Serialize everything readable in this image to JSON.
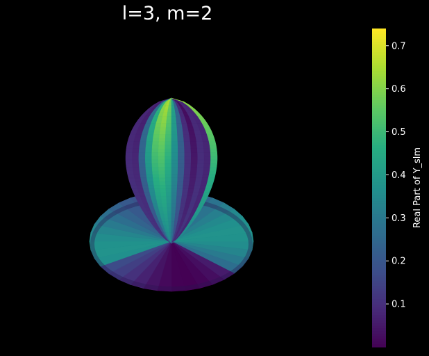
{
  "title": "l=3, m=2",
  "colors": {
    "background": "#000000",
    "text": "#ffffff",
    "colormap": "viridis"
  },
  "chart_data": {
    "type": "surface3d",
    "title": "l=3, m=2",
    "l": 3,
    "m": 2,
    "surface": "spherical harmonic |Y_lm| lobes colored by real part",
    "colorbar": {
      "label": "Real Part of Y_slm",
      "colormap": "viridis",
      "range": [
        0.0,
        0.74
      ],
      "ticks": [
        0.1,
        0.2,
        0.3,
        0.4,
        0.5,
        0.6,
        0.7
      ],
      "tick_labels": [
        "0.1",
        "0.2",
        "0.3",
        "0.4",
        "0.5",
        "0.6",
        "0.7"
      ]
    },
    "axes_visible": false,
    "grid": false
  }
}
